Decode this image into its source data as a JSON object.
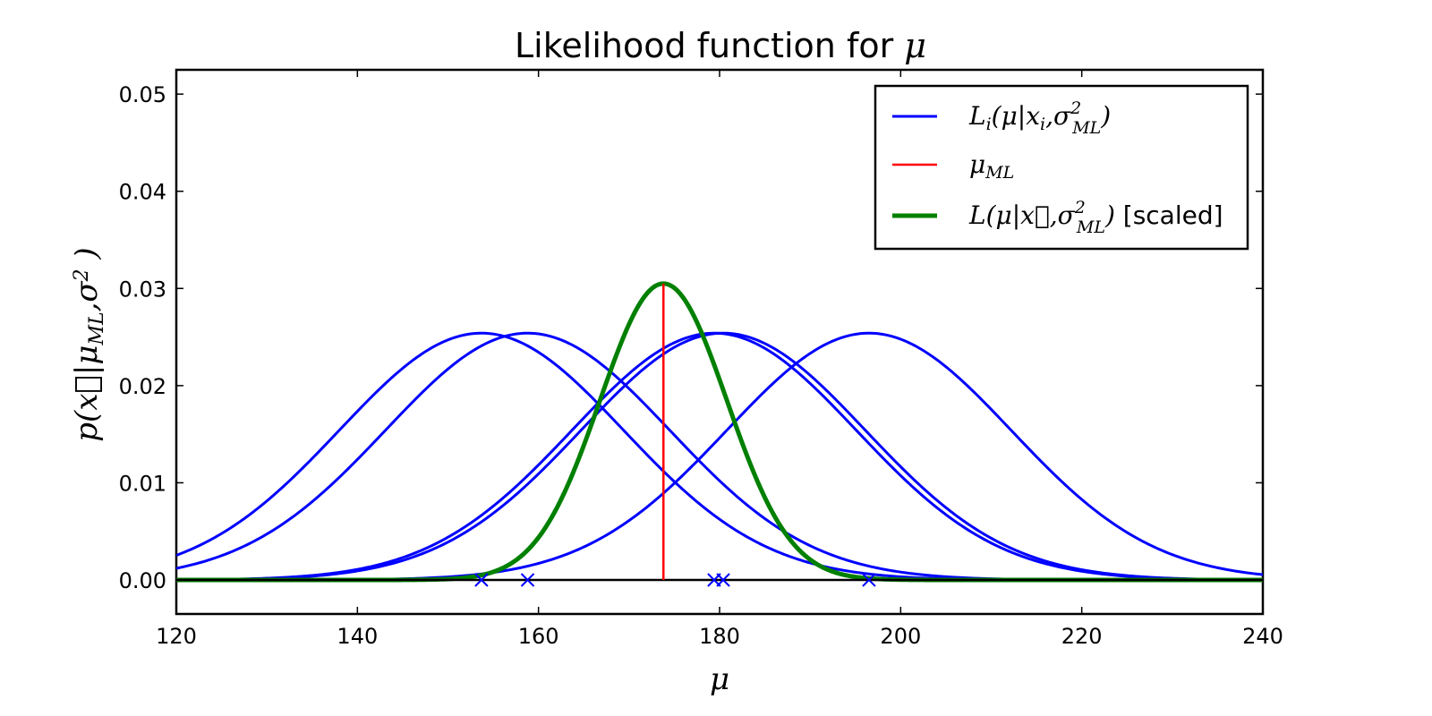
{
  "chart_data": {
    "type": "line",
    "title": "Likelihood function for μ",
    "title_prefix": "Likelihood function for ",
    "title_symbol": "μ",
    "xlabel": "μ",
    "ylabel": "p(x⃗|μML,σ² )",
    "xlim": [
      120,
      240
    ],
    "ylim": [
      -0.0035,
      0.0525
    ],
    "xticks": [
      120,
      140,
      160,
      180,
      200,
      220,
      240
    ],
    "xtick_labels": [
      "120",
      "140",
      "160",
      "180",
      "200",
      "220",
      "240"
    ],
    "yticks": [
      0.0,
      0.01,
      0.02,
      0.03,
      0.04,
      0.05
    ],
    "ytick_labels": [
      "0.00",
      "0.01",
      "0.02",
      "0.03",
      "0.04",
      "0.05"
    ],
    "grid": false,
    "legend_position": "top-right",
    "legend": [
      {
        "label": "Li(μ|xi,σ²ML)",
        "color": "#0000ff"
      },
      {
        "label": "μML",
        "color": "#ff0000"
      },
      {
        "label": "L(μ|x⃗,σ²ML) [scaled]",
        "color": "#008000"
      }
    ],
    "observations": [
      153.7,
      158.8,
      179.4,
      180.4,
      196.5
    ],
    "sigma_ml": 15.7,
    "mu_ml": 173.8,
    "series": [
      {
        "name": "Li(μ|xi,σ²ML)",
        "kind": "gaussian",
        "mean": 153.7,
        "sigma": 15.7,
        "peak": 0.0254,
        "color": "#0000ff"
      },
      {
        "kind": "gaussian",
        "mean": 158.8,
        "sigma": 15.7,
        "peak": 0.0254,
        "color": "#0000ff"
      },
      {
        "kind": "gaussian",
        "mean": 179.4,
        "sigma": 15.7,
        "peak": 0.0254,
        "color": "#0000ff"
      },
      {
        "kind": "gaussian",
        "mean": 180.4,
        "sigma": 15.7,
        "peak": 0.0254,
        "color": "#0000ff"
      },
      {
        "kind": "gaussian",
        "mean": 196.5,
        "sigma": 15.7,
        "peak": 0.0254,
        "color": "#0000ff"
      },
      {
        "name": "L(μ|x⃗,σ²ML) [scaled]",
        "kind": "gaussian",
        "mean": 173.8,
        "sigma": 7.0,
        "peak": 0.0305,
        "color": "#008000"
      }
    ],
    "vline": {
      "name": "μML",
      "x": 173.8,
      "y_range": [
        0.0,
        0.0305
      ],
      "color": "#ff0000"
    }
  },
  "legend_text": {
    "li_main": "L",
    "li_sub": "i",
    "li_open": "(μ|x",
    "li_sub2": "i",
    "li_sep": ",σ",
    "li_sup": "2",
    "li_sub3": "ML",
    "li_close": ")",
    "mu_main": "μ",
    "mu_sub": "ML",
    "l_main": "L(μ|x⃗,σ",
    "l_sup": "2",
    "l_sub": "ML",
    "l_close": ")",
    "l_scaled": " [scaled]"
  },
  "ylabel_parts": {
    "main": "p(x⃗|μ",
    "sub": "ML",
    "mid": ",σ",
    "sup": "2",
    "close": " )"
  }
}
